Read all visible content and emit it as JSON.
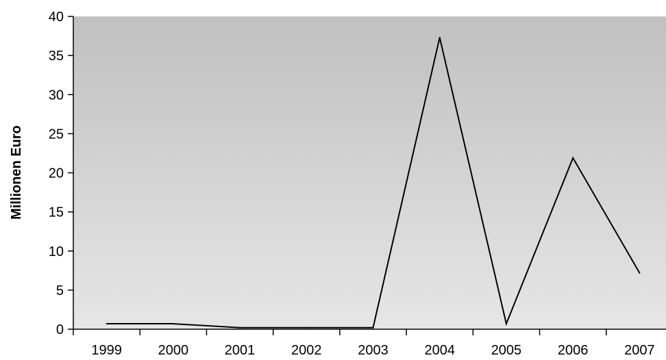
{
  "chart_data": {
    "type": "line",
    "title": "",
    "xlabel": "",
    "ylabel": "Millionen Euro",
    "categories": [
      "1999",
      "2000",
      "2001",
      "2002",
      "2003",
      "2004",
      "2005",
      "2006",
      "2007"
    ],
    "series": [
      {
        "values": [
          0.7,
          0.7,
          0.2,
          0.2,
          0.2,
          37.3,
          0.7,
          21.9,
          7.2
        ]
      }
    ],
    "ylim": [
      0,
      40
    ],
    "yticks": [
      "0",
      "5",
      "10",
      "15",
      "20",
      "25",
      "30",
      "35",
      "40"
    ],
    "grid": false,
    "legend": "none",
    "colors": {
      "plot_bg_top": "#c0c0c0",
      "plot_bg_bottom": "#e6e6e6",
      "line": "#000000",
      "axis": "#000000"
    }
  }
}
